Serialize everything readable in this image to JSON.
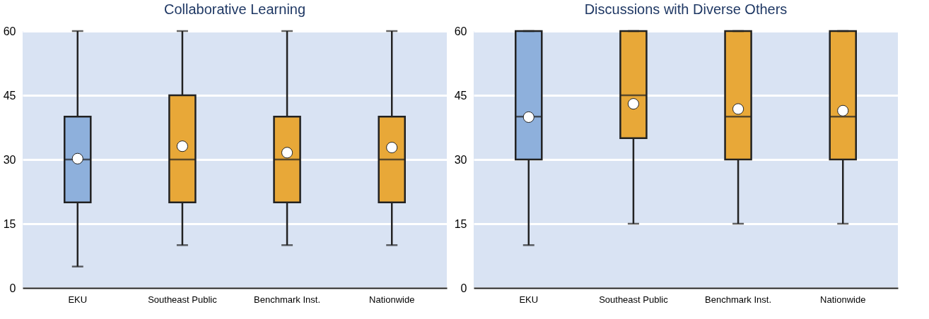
{
  "chart_data": [
    {
      "type": "box",
      "title": "Collaborative Learning",
      "categories": [
        "EKU",
        "Southeast Public",
        "Benchmark Inst.",
        "Nationwide"
      ],
      "colors": [
        "#8eb0dc",
        "#e8a838",
        "#e8a838",
        "#e8a838"
      ],
      "boxes": [
        {
          "low": 5,
          "q1": 20,
          "median": 30,
          "q3": 40,
          "high": 60,
          "mean": 30.2
        },
        {
          "low": 10,
          "q1": 20,
          "median": 30,
          "q3": 45,
          "high": 60,
          "mean": 33.1
        },
        {
          "low": 10,
          "q1": 20,
          "median": 30,
          "q3": 40,
          "high": 60,
          "mean": 31.6
        },
        {
          "low": 10,
          "q1": 20,
          "median": 30,
          "q3": 40,
          "high": 60,
          "mean": 32.8
        }
      ],
      "ylim": [
        0,
        60
      ],
      "yticks": [
        0,
        15,
        30,
        45,
        60
      ],
      "grid": "y"
    },
    {
      "type": "box",
      "title": "Discussions with Diverse Others",
      "categories": [
        "EKU",
        "Southeast Public",
        "Benchmark Inst.",
        "Nationwide"
      ],
      "colors": [
        "#8eb0dc",
        "#e8a838",
        "#e8a838",
        "#e8a838"
      ],
      "boxes": [
        {
          "low": 10,
          "q1": 30,
          "median": 40,
          "q3": 60,
          "high": 60,
          "mean": 39.9
        },
        {
          "low": 15,
          "q1": 35,
          "median": 45,
          "q3": 60,
          "high": 60,
          "mean": 43.0
        },
        {
          "low": 15,
          "q1": 30,
          "median": 40,
          "q3": 60,
          "high": 60,
          "mean": 41.8
        },
        {
          "low": 15,
          "q1": 30,
          "median": 40,
          "q3": 60,
          "high": 60,
          "mean": 41.4
        }
      ],
      "ylim": [
        0,
        60
      ],
      "yticks": [
        0,
        15,
        30,
        45,
        60
      ],
      "grid": "y"
    }
  ]
}
